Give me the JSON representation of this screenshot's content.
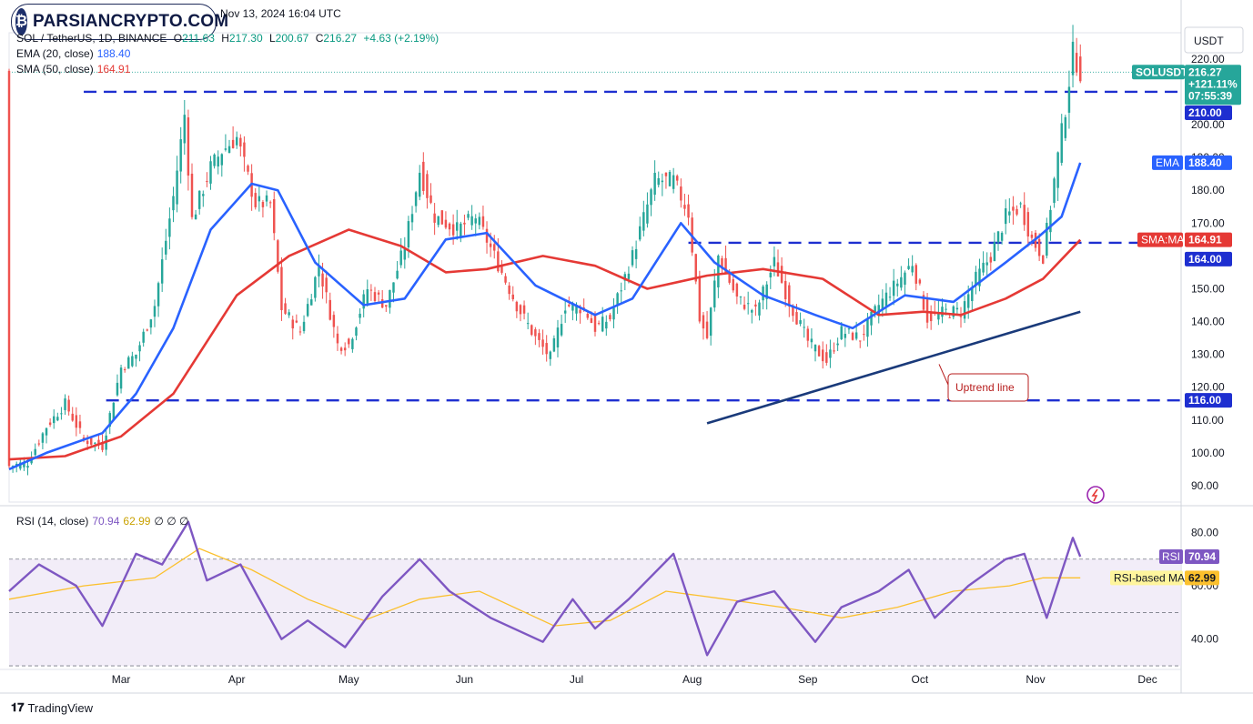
{
  "watermark": {
    "brand": "PARSIANCRYPTO.COM"
  },
  "header": {
    "published": "Nov 13, 2024 16:04 UTC",
    "symbol_line": "SOL / TetherUS, 1D, BINANCE",
    "open_label": "O",
    "open": "211.63",
    "high_label": "H",
    "high": "217.30",
    "low_label": "L",
    "low": "200.67",
    "close_label": "C",
    "close": "216.27",
    "change": "+4.63 (+2.19%)",
    "ema_label": "EMA (20, close)",
    "ema_value": "188.40",
    "sma_label": "SMA (50, close)",
    "sma_value": "164.91",
    "rsi_label": "RSI (14, close)",
    "rsi_value": "70.94",
    "rsi_ma_value": "62.99",
    "rsi_extra": "∅  ∅  ∅"
  },
  "price_axis": {
    "currency": "USDT",
    "ticks": [
      "220.00",
      "210.00",
      "200.00",
      "190.00",
      "180.00",
      "170.00",
      "160.00",
      "150.00",
      "140.00",
      "130.00",
      "120.00",
      "110.00",
      "100.00",
      "90.00"
    ],
    "tick_values": [
      220,
      210,
      200,
      190,
      180,
      170,
      160,
      150,
      140,
      130,
      120,
      110,
      100,
      90
    ],
    "badges": {
      "symbol": "SOLUSDT",
      "last_price": "216.27",
      "pct": "+121.11%",
      "countdown": "07:55:39",
      "level_210": "210.00",
      "ema_tag": "EMA",
      "ema_price": "188.40",
      "sma_tag": "SMA:MA",
      "sma_price": "164.91",
      "level_164": "164.00",
      "level_116": "116.00"
    }
  },
  "rsi_axis": {
    "ticks": [
      "80.00",
      "60.00",
      "40.00"
    ],
    "tick_values": [
      80,
      60,
      40
    ],
    "rsi_tag": "RSI",
    "rsi_value": "70.94",
    "ma_tag": "RSI-based MA",
    "ma_value": "62.99"
  },
  "time_axis": {
    "labels": [
      "Mar",
      "Apr",
      "May",
      "Jun",
      "Jul",
      "Aug",
      "Sep",
      "Oct",
      "Nov",
      "Dec"
    ]
  },
  "annotation": {
    "text": "Uptrend line"
  },
  "footer": {
    "brand": "TradingView"
  },
  "colors": {
    "up": "#26a69a",
    "down": "#ef5350",
    "ema": "#2962ff",
    "sma": "#e53935",
    "levels": "#1e2fd0",
    "trendline": "#1a3a7a",
    "rsi": "#7e57c2",
    "rsi_ma": "#fbc02d"
  },
  "chart_data": {
    "type": "candlestick",
    "symbol": "SOL / TetherUS",
    "interval": "1D",
    "exchange": "BINANCE",
    "x_range": [
      "2024-01-31",
      "2024-12-10"
    ],
    "y_range": [
      85,
      228
    ],
    "horizontal_levels": [
      210,
      164,
      116
    ],
    "trendline": {
      "from": {
        "date": "2024-08-05",
        "price": 109
      },
      "to": {
        "date": "2024-11-13",
        "price": 143
      }
    },
    "price_path": [
      {
        "date": "2024-01-31",
        "price": 96
      },
      {
        "date": "2024-02-05",
        "price": 97
      },
      {
        "date": "2024-02-10",
        "price": 108
      },
      {
        "date": "2024-02-15",
        "price": 115
      },
      {
        "date": "2024-02-20",
        "price": 104
      },
      {
        "date": "2024-02-25",
        "price": 102
      },
      {
        "date": "2024-03-01",
        "price": 126
      },
      {
        "date": "2024-03-05",
        "price": 130
      },
      {
        "date": "2024-03-10",
        "price": 145
      },
      {
        "date": "2024-03-15",
        "price": 178
      },
      {
        "date": "2024-03-18",
        "price": 203
      },
      {
        "date": "2024-03-20",
        "price": 171
      },
      {
        "date": "2024-03-25",
        "price": 187
      },
      {
        "date": "2024-03-28",
        "price": 192
      },
      {
        "date": "2024-04-01",
        "price": 196
      },
      {
        "date": "2024-04-06",
        "price": 176
      },
      {
        "date": "2024-04-10",
        "price": 176
      },
      {
        "date": "2024-04-13",
        "price": 144
      },
      {
        "date": "2024-04-18",
        "price": 137
      },
      {
        "date": "2024-04-23",
        "price": 157
      },
      {
        "date": "2024-04-28",
        "price": 133
      },
      {
        "date": "2024-05-01",
        "price": 133
      },
      {
        "date": "2024-05-06",
        "price": 150
      },
      {
        "date": "2024-05-11",
        "price": 145
      },
      {
        "date": "2024-05-16",
        "price": 163
      },
      {
        "date": "2024-05-20",
        "price": 186
      },
      {
        "date": "2024-05-24",
        "price": 172
      },
      {
        "date": "2024-05-30",
        "price": 168
      },
      {
        "date": "2024-06-04",
        "price": 172
      },
      {
        "date": "2024-06-09",
        "price": 160
      },
      {
        "date": "2024-06-15",
        "price": 145
      },
      {
        "date": "2024-06-20",
        "price": 135
      },
      {
        "date": "2024-06-24",
        "price": 129
      },
      {
        "date": "2024-06-28",
        "price": 145
      },
      {
        "date": "2024-07-03",
        "price": 144
      },
      {
        "date": "2024-07-06",
        "price": 138
      },
      {
        "date": "2024-07-10",
        "price": 141
      },
      {
        "date": "2024-07-16",
        "price": 160
      },
      {
        "date": "2024-07-22",
        "price": 183
      },
      {
        "date": "2024-07-27",
        "price": 183
      },
      {
        "date": "2024-07-31",
        "price": 173
      },
      {
        "date": "2024-08-03",
        "price": 141
      },
      {
        "date": "2024-08-05",
        "price": 135
      },
      {
        "date": "2024-08-08",
        "price": 160
      },
      {
        "date": "2024-08-13",
        "price": 147
      },
      {
        "date": "2024-08-18",
        "price": 143
      },
      {
        "date": "2024-08-23",
        "price": 158
      },
      {
        "date": "2024-08-27",
        "price": 146
      },
      {
        "date": "2024-09-01",
        "price": 134
      },
      {
        "date": "2024-09-06",
        "price": 128
      },
      {
        "date": "2024-09-10",
        "price": 137
      },
      {
        "date": "2024-09-15",
        "price": 135
      },
      {
        "date": "2024-09-20",
        "price": 145
      },
      {
        "date": "2024-09-25",
        "price": 152
      },
      {
        "date": "2024-09-29",
        "price": 158
      },
      {
        "date": "2024-10-03",
        "price": 141
      },
      {
        "date": "2024-10-08",
        "price": 143
      },
      {
        "date": "2024-10-12",
        "price": 143
      },
      {
        "date": "2024-10-16",
        "price": 153
      },
      {
        "date": "2024-10-20",
        "price": 160
      },
      {
        "date": "2024-10-24",
        "price": 172
      },
      {
        "date": "2024-10-28",
        "price": 175
      },
      {
        "date": "2024-10-31",
        "price": 165
      },
      {
        "date": "2024-11-03",
        "price": 160
      },
      {
        "date": "2024-11-06",
        "price": 183
      },
      {
        "date": "2024-11-09",
        "price": 205
      },
      {
        "date": "2024-11-11",
        "price": 222
      },
      {
        "date": "2024-11-13",
        "price": 216
      }
    ],
    "ema_20": [
      {
        "date": "2024-01-31",
        "value": 95
      },
      {
        "date": "2024-02-10",
        "value": 100
      },
      {
        "date": "2024-02-25",
        "value": 106
      },
      {
        "date": "2024-03-05",
        "value": 118
      },
      {
        "date": "2024-03-15",
        "value": 138
      },
      {
        "date": "2024-03-25",
        "value": 168
      },
      {
        "date": "2024-04-05",
        "value": 182
      },
      {
        "date": "2024-04-12",
        "value": 180
      },
      {
        "date": "2024-04-22",
        "value": 158
      },
      {
        "date": "2024-05-05",
        "value": 145
      },
      {
        "date": "2024-05-16",
        "value": 147
      },
      {
        "date": "2024-05-27",
        "value": 165
      },
      {
        "date": "2024-06-07",
        "value": 167
      },
      {
        "date": "2024-06-20",
        "value": 151
      },
      {
        "date": "2024-07-06",
        "value": 142
      },
      {
        "date": "2024-07-16",
        "value": 147
      },
      {
        "date": "2024-07-29",
        "value": 170
      },
      {
        "date": "2024-08-07",
        "value": 158
      },
      {
        "date": "2024-08-20",
        "value": 148
      },
      {
        "date": "2024-09-03",
        "value": 142
      },
      {
        "date": "2024-09-13",
        "value": 138
      },
      {
        "date": "2024-09-27",
        "value": 148
      },
      {
        "date": "2024-10-10",
        "value": 146
      },
      {
        "date": "2024-10-24",
        "value": 158
      },
      {
        "date": "2024-11-02",
        "value": 166
      },
      {
        "date": "2024-11-08",
        "value": 172
      },
      {
        "date": "2024-11-13",
        "value": 188.4
      }
    ],
    "sma_50": [
      {
        "date": "2024-01-31",
        "value": 98
      },
      {
        "date": "2024-02-15",
        "value": 99
      },
      {
        "date": "2024-03-01",
        "value": 105
      },
      {
        "date": "2024-03-15",
        "value": 118
      },
      {
        "date": "2024-04-01",
        "value": 148
      },
      {
        "date": "2024-04-15",
        "value": 160
      },
      {
        "date": "2024-05-01",
        "value": 168
      },
      {
        "date": "2024-05-15",
        "value": 163
      },
      {
        "date": "2024-05-27",
        "value": 155
      },
      {
        "date": "2024-06-07",
        "value": 156
      },
      {
        "date": "2024-06-22",
        "value": 160
      },
      {
        "date": "2024-07-06",
        "value": 157
      },
      {
        "date": "2024-07-20",
        "value": 150
      },
      {
        "date": "2024-08-05",
        "value": 154
      },
      {
        "date": "2024-08-20",
        "value": 156
      },
      {
        "date": "2024-09-05",
        "value": 153
      },
      {
        "date": "2024-09-20",
        "value": 142
      },
      {
        "date": "2024-10-02",
        "value": 143
      },
      {
        "date": "2024-10-12",
        "value": 142
      },
      {
        "date": "2024-10-24",
        "value": 147
      },
      {
        "date": "2024-11-03",
        "value": 153
      },
      {
        "date": "2024-11-13",
        "value": 164.91
      }
    ],
    "rsi_14": [
      {
        "date": "2024-01-31",
        "value": 58
      },
      {
        "date": "2024-02-08",
        "value": 68
      },
      {
        "date": "2024-02-18",
        "value": 60
      },
      {
        "date": "2024-02-25",
        "value": 45
      },
      {
        "date": "2024-03-05",
        "value": 72
      },
      {
        "date": "2024-03-12",
        "value": 68
      },
      {
        "date": "2024-03-19",
        "value": 84
      },
      {
        "date": "2024-03-24",
        "value": 62
      },
      {
        "date": "2024-04-02",
        "value": 68
      },
      {
        "date": "2024-04-13",
        "value": 40
      },
      {
        "date": "2024-04-20",
        "value": 47
      },
      {
        "date": "2024-04-30",
        "value": 37
      },
      {
        "date": "2024-05-10",
        "value": 56
      },
      {
        "date": "2024-05-20",
        "value": 70
      },
      {
        "date": "2024-05-28",
        "value": 58
      },
      {
        "date": "2024-06-08",
        "value": 48
      },
      {
        "date": "2024-06-22",
        "value": 39
      },
      {
        "date": "2024-06-30",
        "value": 55
      },
      {
        "date": "2024-07-06",
        "value": 44
      },
      {
        "date": "2024-07-15",
        "value": 55
      },
      {
        "date": "2024-07-27",
        "value": 72
      },
      {
        "date": "2024-08-05",
        "value": 34
      },
      {
        "date": "2024-08-13",
        "value": 54
      },
      {
        "date": "2024-08-23",
        "value": 58
      },
      {
        "date": "2024-09-03",
        "value": 39
      },
      {
        "date": "2024-09-10",
        "value": 52
      },
      {
        "date": "2024-09-20",
        "value": 58
      },
      {
        "date": "2024-09-28",
        "value": 66
      },
      {
        "date": "2024-10-05",
        "value": 48
      },
      {
        "date": "2024-10-14",
        "value": 60
      },
      {
        "date": "2024-10-24",
        "value": 70
      },
      {
        "date": "2024-10-29",
        "value": 72
      },
      {
        "date": "2024-11-04",
        "value": 48
      },
      {
        "date": "2024-11-11",
        "value": 78
      },
      {
        "date": "2024-11-13",
        "value": 70.94
      }
    ],
    "rsi_ma": [
      {
        "date": "2024-01-31",
        "value": 55
      },
      {
        "date": "2024-02-20",
        "value": 60
      },
      {
        "date": "2024-03-10",
        "value": 63
      },
      {
        "date": "2024-03-22",
        "value": 74
      },
      {
        "date": "2024-04-05",
        "value": 66
      },
      {
        "date": "2024-04-20",
        "value": 55
      },
      {
        "date": "2024-05-05",
        "value": 47
      },
      {
        "date": "2024-05-20",
        "value": 55
      },
      {
        "date": "2024-06-05",
        "value": 58
      },
      {
        "date": "2024-06-25",
        "value": 45
      },
      {
        "date": "2024-07-10",
        "value": 47
      },
      {
        "date": "2024-07-25",
        "value": 58
      },
      {
        "date": "2024-08-10",
        "value": 55
      },
      {
        "date": "2024-08-25",
        "value": 52
      },
      {
        "date": "2024-09-10",
        "value": 48
      },
      {
        "date": "2024-09-25",
        "value": 52
      },
      {
        "date": "2024-10-10",
        "value": 58
      },
      {
        "date": "2024-10-25",
        "value": 60
      },
      {
        "date": "2024-11-03",
        "value": 63
      },
      {
        "date": "2024-11-13",
        "value": 62.99
      }
    ],
    "rsi_range": [
      29,
      88
    ],
    "rsi_bands": [
      70,
      50,
      30
    ]
  }
}
